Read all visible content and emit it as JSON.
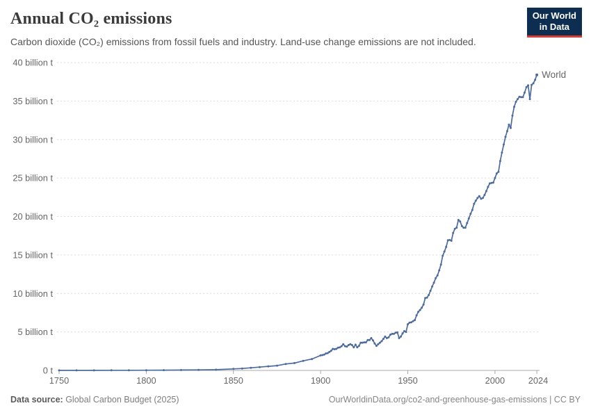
{
  "header": {
    "title": "Annual CO₂ emissions",
    "subtitle": "Carbon dioxide (CO₂) emissions from fossil fuels and industry. Land-use change emissions are not included.",
    "logo": {
      "line1": "Our World",
      "line2": "in Data",
      "bg_color": "#0d2d51",
      "accent_color": "#d93a32"
    }
  },
  "chart_data": {
    "type": "line",
    "title": "Annual CO₂ emissions",
    "unit": "billion t CO₂ per year",
    "xlabel": "",
    "ylabel": "",
    "xlim": [
      1750,
      2024
    ],
    "ylim": [
      0,
      40
    ],
    "grid": "horizontal-dashed",
    "legend_position": "end-of-line",
    "x_ticks": [
      "1750",
      "1800",
      "1850",
      "1900",
      "1950",
      "2000",
      "2024"
    ],
    "y_ticks": [
      "0 t",
      "5 billion t",
      "10 billion t",
      "15 billion t",
      "20 billion t",
      "25 billion t",
      "30 billion t",
      "35 billion t",
      "40 billion t"
    ],
    "colors": {
      "line": "#4C6A9C",
      "grid": "#dcdcdc",
      "axis": "#a8a8a8",
      "tick_text": "#666666"
    },
    "series": [
      {
        "name": "World",
        "color": "#4C6A9C",
        "x": [
          1750,
          1760,
          1770,
          1780,
          1790,
          1800,
          1810,
          1820,
          1830,
          1840,
          1850,
          1855,
          1860,
          1865,
          1870,
          1875,
          1880,
          1885,
          1890,
          1895,
          1900,
          1901,
          1902,
          1903,
          1904,
          1905,
          1906,
          1907,
          1908,
          1909,
          1910,
          1911,
          1912,
          1913,
          1914,
          1915,
          1916,
          1917,
          1918,
          1919,
          1920,
          1921,
          1922,
          1923,
          1924,
          1925,
          1926,
          1927,
          1928,
          1929,
          1930,
          1931,
          1932,
          1933,
          1934,
          1935,
          1936,
          1937,
          1938,
          1939,
          1940,
          1941,
          1942,
          1943,
          1944,
          1945,
          1946,
          1947,
          1948,
          1949,
          1950,
          1951,
          1952,
          1953,
          1954,
          1955,
          1956,
          1957,
          1958,
          1959,
          1960,
          1961,
          1962,
          1963,
          1964,
          1965,
          1966,
          1967,
          1968,
          1969,
          1970,
          1971,
          1972,
          1973,
          1974,
          1975,
          1976,
          1977,
          1978,
          1979,
          1980,
          1981,
          1982,
          1983,
          1984,
          1985,
          1986,
          1987,
          1988,
          1989,
          1990,
          1991,
          1992,
          1993,
          1994,
          1995,
          1996,
          1997,
          1998,
          1999,
          2000,
          2001,
          2002,
          2003,
          2004,
          2005,
          2006,
          2007,
          2008,
          2009,
          2010,
          2011,
          2012,
          2013,
          2014,
          2015,
          2016,
          2017,
          2018,
          2019,
          2020,
          2021,
          2022,
          2023,
          2024
        ],
        "y": [
          0.009,
          0.011,
          0.013,
          0.016,
          0.02,
          0.03,
          0.04,
          0.052,
          0.073,
          0.1,
          0.2,
          0.25,
          0.34,
          0.43,
          0.53,
          0.62,
          0.84,
          0.96,
          1.25,
          1.48,
          1.95,
          2.0,
          2.05,
          2.2,
          2.25,
          2.4,
          2.55,
          2.8,
          2.75,
          2.8,
          2.95,
          3.0,
          3.15,
          3.4,
          3.15,
          3.1,
          3.3,
          3.4,
          3.3,
          3.0,
          3.35,
          3.0,
          3.2,
          3.6,
          3.6,
          3.65,
          3.65,
          3.95,
          3.95,
          4.2,
          3.9,
          3.5,
          3.2,
          3.4,
          3.6,
          3.8,
          4.1,
          4.4,
          4.2,
          4.3,
          4.65,
          4.75,
          4.75,
          4.9,
          4.95,
          4.2,
          4.4,
          4.8,
          5.1,
          5.0,
          6.0,
          6.2,
          6.25,
          6.4,
          6.55,
          7.15,
          7.6,
          7.85,
          8.15,
          8.55,
          9.4,
          9.45,
          9.8,
          10.35,
          10.9,
          11.4,
          12.0,
          12.35,
          13.0,
          13.75,
          14.9,
          15.45,
          16.05,
          16.9,
          16.95,
          16.85,
          17.85,
          18.4,
          18.55,
          19.55,
          19.35,
          18.75,
          18.55,
          18.55,
          19.15,
          19.75,
          20.35,
          20.85,
          21.65,
          22.05,
          22.4,
          22.65,
          22.3,
          22.4,
          22.8,
          23.3,
          23.85,
          24.3,
          24.35,
          24.4,
          25.0,
          25.6,
          25.8,
          27.2,
          28.3,
          29.35,
          30.35,
          31.1,
          31.95,
          31.5,
          33.1,
          34.25,
          34.9,
          35.25,
          35.55,
          35.5,
          35.5,
          36.1,
          36.8,
          37.05,
          35.25,
          37.1,
          37.3,
          37.75,
          38.4
        ]
      }
    ]
  },
  "footer": {
    "source_label": "Data source:",
    "source_value": " Global Carbon Budget (2025)",
    "credit": "OurWorldinData.org/co2-and-greenhouse-gas-emissions | CC BY"
  }
}
